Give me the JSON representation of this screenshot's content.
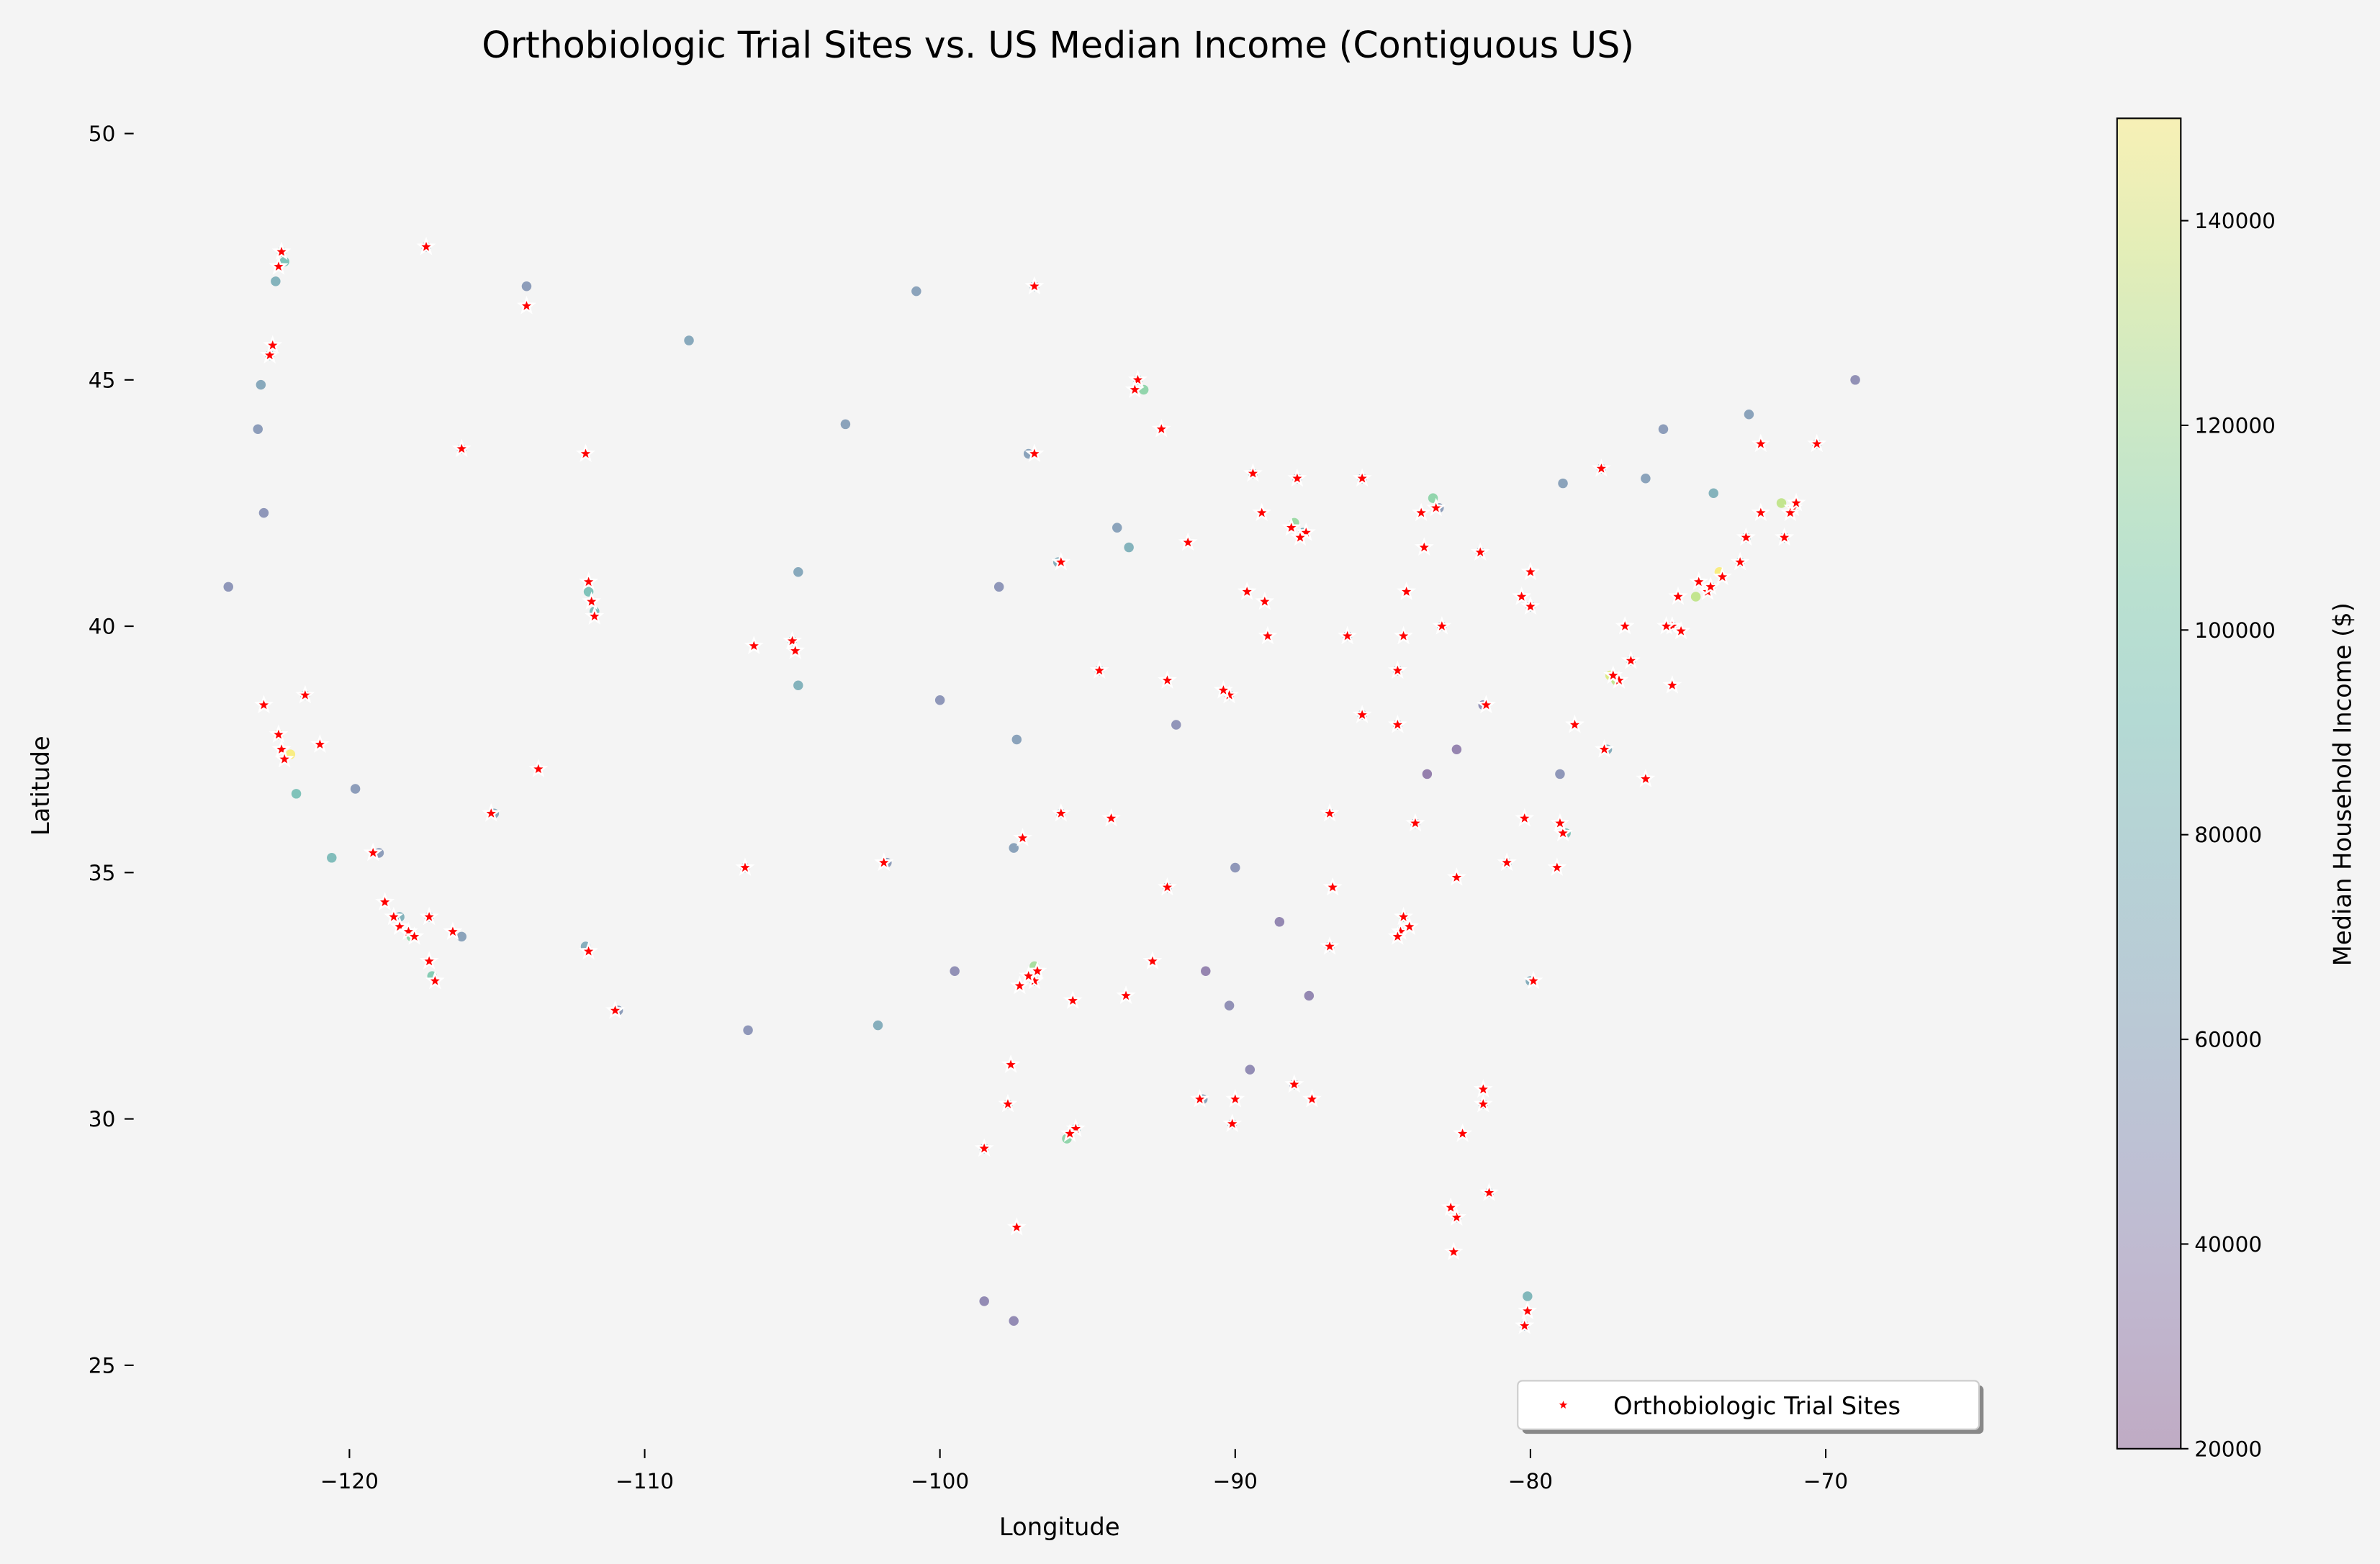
{
  "chart_data": {
    "type": "scatter",
    "title": "Orthobiologic Trial Sites vs. US Median Income (Contiguous US)",
    "x_label": "Longitude",
    "y_label": "Latitude",
    "xlim": [
      -127,
      -64.5
    ],
    "ylim": [
      23.3,
      50.7
    ],
    "xticks": [
      {
        "value": -120,
        "label": "−120"
      },
      {
        "value": -110,
        "label": "−110"
      },
      {
        "value": -100,
        "label": "−100"
      },
      {
        "value": -90,
        "label": "−90"
      },
      {
        "value": -80,
        "label": "−80"
      },
      {
        "value": -70,
        "label": "−70"
      }
    ],
    "yticks": [
      25,
      30,
      35,
      40,
      45,
      50
    ],
    "legend_position": "lower right",
    "income_points": {
      "x": [
        -122.3,
        -122.2,
        -122.5,
        -122.7,
        -123.0,
        -123.1,
        -122.9,
        -124.1,
        -121.5,
        -122.4,
        -122.0,
        -121.8,
        -119.8,
        -119.0,
        -120.6,
        -118.3,
        -117.9,
        -117.2,
        -117.3,
        -116.2,
        -115.1,
        -112.0,
        -110.9,
        -111.9,
        -111.7,
        -116.2,
        -117.4,
        -114.0,
        -108.5,
        -106.6,
        -105.0,
        -104.8,
        -104.8,
        -101.8,
        -102.1,
        -98.5,
        -97.7,
        -95.4,
        -95.7,
        -96.8,
        -96.8,
        -97.5,
        -95.9,
        -97.4,
        -94.6,
        -96.0,
        -93.6,
        -93.3,
        -93.1,
        -96.8,
        -100.8,
        -103.2,
        -98.0,
        -100.0,
        -99.5,
        -92.3,
        -90.0,
        -90.2,
        -91.1,
        -90.1,
        -88.0,
        -86.8,
        -86.8,
        -84.4,
        -84.3,
        -83.9,
        -82.5,
        -83.5,
        -84.5,
        -85.7,
        -86.2,
        -87.7,
        -88.0,
        -89.4,
        -87.9,
        -90.2,
        -83.0,
        -84.5,
        -83.1,
        -83.3,
        -85.7,
        -81.7,
        -80.0,
        -81.6,
        -80.8,
        -78.8,
        -80.0,
        -81.6,
        -82.5,
        -81.4,
        -80.2,
        -80.1,
        -77.4,
        -77.1,
        -77.3,
        -76.6,
        -75.2,
        -74.4,
        -73.9,
        -73.6,
        -72.9,
        -71.1,
        -71.5,
        -71.4,
        -72.7,
        -73.8,
        -76.1,
        -77.6,
        -78.9,
        -70.3,
        -69.0,
        -72.6,
        -88.5,
        -91.0,
        -89.5,
        -87.5,
        -79.0,
        -75.5,
        -97.0,
        -94.0,
        -92.0,
        -98.5,
        -97.5,
        -106.5
      ],
      "y": [
        47.6,
        47.4,
        47.0,
        45.5,
        44.9,
        44.0,
        42.3,
        40.8,
        38.6,
        37.8,
        37.4,
        36.6,
        36.7,
        35.4,
        35.3,
        34.1,
        33.7,
        32.9,
        34.1,
        33.7,
        36.2,
        33.5,
        32.2,
        40.7,
        40.3,
        43.6,
        47.7,
        46.9,
        45.8,
        35.1,
        39.7,
        38.8,
        41.1,
        35.2,
        31.9,
        29.4,
        30.3,
        29.8,
        29.6,
        32.8,
        33.1,
        35.5,
        36.2,
        37.7,
        39.1,
        41.3,
        41.6,
        45.0,
        44.8,
        46.9,
        46.8,
        44.1,
        40.8,
        38.5,
        33.0,
        34.7,
        35.1,
        32.3,
        30.4,
        29.9,
        30.7,
        33.5,
        36.2,
        33.8,
        34.1,
        36.0,
        37.5,
        37.0,
        38.0,
        38.2,
        39.8,
        41.9,
        42.1,
        43.1,
        43.0,
        38.6,
        40.0,
        39.1,
        42.4,
        42.6,
        43.0,
        41.5,
        40.4,
        38.4,
        35.2,
        35.8,
        32.8,
        30.3,
        28.0,
        28.5,
        25.8,
        26.4,
        37.5,
        38.9,
        39.0,
        39.3,
        40.0,
        40.6,
        40.8,
        41.1,
        41.3,
        42.4,
        42.5,
        41.8,
        41.8,
        42.7,
        43.0,
        43.2,
        42.9,
        43.7,
        45.0,
        44.3,
        34.0,
        33.0,
        31.0,
        32.5,
        37.0,
        44.0,
        43.5,
        42.0,
        38.0,
        26.3,
        25.9,
        31.8
      ],
      "values": [
        110000,
        90000,
        75000,
        85000,
        65000,
        55000,
        50000,
        50000,
        80000,
        140000,
        150000,
        90000,
        55000,
        55000,
        85000,
        75000,
        110000,
        100000,
        65000,
        60000,
        65000,
        70000,
        55000,
        90000,
        85000,
        70000,
        60000,
        55000,
        65000,
        55000,
        95000,
        75000,
        65000,
        55000,
        70000,
        65000,
        100000,
        80000,
        110000,
        75000,
        120000,
        60000,
        60000,
        60000,
        70000,
        70000,
        75000,
        85000,
        110000,
        65000,
        60000,
        60000,
        50000,
        50000,
        45000,
        55000,
        50000,
        45000,
        60000,
        55000,
        50000,
        55000,
        75000,
        80000,
        110000,
        55000,
        35000,
        32000,
        60000,
        60000,
        65000,
        75000,
        115000,
        75000,
        60000,
        65000,
        70000,
        65000,
        55000,
        110000,
        65000,
        55000,
        65000,
        45000,
        70000,
        90000,
        70000,
        65000,
        60000,
        65000,
        60000,
        80000,
        70000,
        130000,
        140000,
        80000,
        70000,
        130000,
        80000,
        150000,
        90000,
        110000,
        130000,
        75000,
        85000,
        75000,
        60000,
        65000,
        60000,
        70000,
        45000,
        60000,
        38000,
        35000,
        42000,
        38000,
        50000,
        55000,
        60000,
        60000,
        48000,
        40000,
        40000,
        50000
      ]
    },
    "series": [
      {
        "name": "Orthobiologic Trial Sites",
        "color": "#ff0000",
        "x": [
          -122.3,
          -122.4,
          -122.7,
          -122.6,
          -117.4,
          -114.0,
          -116.2,
          -112.0,
          -111.9,
          -111.8,
          -111.7,
          -121.5,
          -122.4,
          -122.3,
          -122.9,
          -121.0,
          -122.2,
          -119.2,
          -118.8,
          -118.5,
          -118.3,
          -118.0,
          -117.8,
          -117.3,
          -117.3,
          -117.1,
          -116.5,
          -115.2,
          -113.6,
          -111.9,
          -111.0,
          -106.6,
          -105.0,
          -104.9,
          -106.3,
          -101.9,
          -93.3,
          -93.4,
          -92.5,
          -96.8,
          -96.8,
          -95.9,
          -91.6,
          -94.6,
          -92.3,
          -90.2,
          -90.4,
          -89.4,
          -87.9,
          -87.6,
          -87.8,
          -88.1,
          -89.1,
          -89.6,
          -89.0,
          -88.9,
          -86.2,
          -85.7,
          -84.5,
          -84.3,
          -83.0,
          -85.7,
          -83.7,
          -83.2,
          -83.6,
          -84.2,
          -81.7,
          -80.0,
          -80.3,
          -80.0,
          -81.5,
          -84.5,
          -86.8,
          -83.9,
          -86.7,
          -92.3,
          -97.2,
          -95.9,
          -94.2,
          -96.8,
          -97.0,
          -97.3,
          -96.7,
          -95.5,
          -93.7,
          -92.8,
          -95.4,
          -95.6,
          -97.7,
          -98.5,
          -97.6,
          -97.4,
          -91.2,
          -90.1,
          -90.0,
          -88.0,
          -87.4,
          -86.8,
          -84.4,
          -84.3,
          -84.5,
          -84.1,
          -82.5,
          -80.8,
          -80.2,
          -78.9,
          -79.0,
          -79.1,
          -79.9,
          -81.6,
          -81.6,
          -82.3,
          -82.5,
          -82.7,
          -82.6,
          -81.4,
          -80.2,
          -80.1,
          -77.5,
          -78.5,
          -77.0,
          -77.2,
          -76.6,
          -75.2,
          -75.4,
          -74.9,
          -76.8,
          -76.1,
          -75.2,
          -74.0,
          -73.9,
          -74.3,
          -73.5,
          -75.0,
          -72.9,
          -71.1,
          -71.2,
          -71.0,
          -71.4,
          -72.7,
          -72.2,
          -72.2,
          -70.3,
          -77.6
        ],
        "y": [
          47.6,
          47.3,
          45.5,
          45.7,
          47.7,
          46.5,
          43.6,
          43.5,
          40.9,
          40.5,
          40.2,
          38.6,
          37.8,
          37.5,
          38.4,
          37.6,
          37.3,
          35.4,
          34.4,
          34.1,
          33.9,
          33.8,
          33.7,
          34.1,
          33.2,
          32.8,
          33.8,
          36.2,
          37.1,
          33.4,
          32.2,
          35.1,
          39.7,
          39.5,
          39.6,
          35.2,
          45.0,
          44.8,
          44.0,
          43.5,
          46.9,
          41.3,
          41.7,
          39.1,
          38.9,
          38.6,
          38.7,
          43.1,
          43.0,
          41.9,
          41.8,
          42.0,
          42.3,
          40.7,
          40.5,
          39.8,
          39.8,
          38.2,
          39.1,
          39.8,
          40.0,
          43.0,
          42.3,
          42.4,
          41.6,
          40.7,
          41.5,
          40.4,
          40.6,
          41.1,
          38.4,
          38.0,
          36.2,
          36.0,
          34.7,
          34.7,
          35.7,
          36.2,
          36.1,
          32.8,
          32.9,
          32.7,
          33.0,
          32.4,
          32.5,
          33.2,
          29.8,
          29.7,
          30.3,
          29.4,
          31.1,
          27.8,
          30.4,
          29.9,
          30.4,
          30.7,
          30.4,
          33.5,
          33.8,
          34.1,
          33.7,
          33.9,
          34.9,
          35.2,
          36.1,
          35.8,
          36.0,
          35.1,
          32.8,
          30.3,
          30.6,
          29.7,
          28.0,
          28.2,
          27.3,
          28.5,
          25.8,
          26.1,
          37.5,
          38.0,
          38.9,
          39.0,
          39.3,
          40.0,
          40.0,
          39.9,
          40.0,
          36.9,
          38.8,
          40.7,
          40.8,
          40.9,
          41.0,
          40.6,
          41.3,
          42.4,
          42.3,
          42.5,
          41.8,
          41.8,
          42.3,
          43.7,
          43.7,
          43.2
        ]
      }
    ],
    "colorbar": {
      "label": "Median Household Income ($)",
      "colormap": "viridis",
      "lim": [
        20000,
        150000
      ],
      "ticks": [
        20000,
        40000,
        60000,
        80000,
        100000,
        120000,
        140000
      ]
    }
  }
}
